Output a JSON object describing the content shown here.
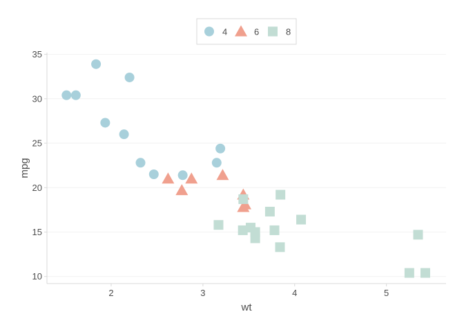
{
  "chart_data": {
    "type": "scatter",
    "title": "",
    "xlabel": "wt",
    "ylabel": "mpg",
    "xlim": [
      1.3,
      5.65
    ],
    "ylim": [
      9.2,
      35.2
    ],
    "x_ticks": [
      2,
      3,
      4,
      5
    ],
    "y_ticks": [
      10,
      15,
      20,
      25,
      30,
      35
    ],
    "grid": "horizontal-light",
    "legend_position": "top-center",
    "series": [
      {
        "name": "4",
        "shape": "circle",
        "color": "#a8d0db",
        "points": [
          [
            1.513,
            30.4
          ],
          [
            1.615,
            30.4
          ],
          [
            1.835,
            33.9
          ],
          [
            1.935,
            27.3
          ],
          [
            2.14,
            26.0
          ],
          [
            2.2,
            32.4
          ],
          [
            2.32,
            22.8
          ],
          [
            2.465,
            21.5
          ],
          [
            2.78,
            21.4
          ],
          [
            3.15,
            22.8
          ],
          [
            3.19,
            24.4
          ]
        ]
      },
      {
        "name": "6",
        "shape": "triangle",
        "color": "#f0a08e",
        "points": [
          [
            2.62,
            21.0
          ],
          [
            2.77,
            19.7
          ],
          [
            2.875,
            21.0
          ],
          [
            3.215,
            21.4
          ],
          [
            3.44,
            19.2
          ],
          [
            3.44,
            17.8
          ],
          [
            3.46,
            18.1
          ]
        ]
      },
      {
        "name": "8",
        "shape": "square",
        "color": "#c2ddd4",
        "points": [
          [
            3.17,
            15.8
          ],
          [
            3.435,
            15.2
          ],
          [
            3.44,
            18.7
          ],
          [
            3.52,
            15.5
          ],
          [
            3.57,
            14.3
          ],
          [
            3.57,
            15.0
          ],
          [
            3.73,
            17.3
          ],
          [
            3.78,
            15.2
          ],
          [
            3.84,
            13.3
          ],
          [
            3.845,
            19.2
          ],
          [
            4.07,
            16.4
          ],
          [
            5.25,
            10.4
          ],
          [
            5.345,
            14.7
          ],
          [
            5.424,
            10.4
          ]
        ]
      }
    ]
  }
}
